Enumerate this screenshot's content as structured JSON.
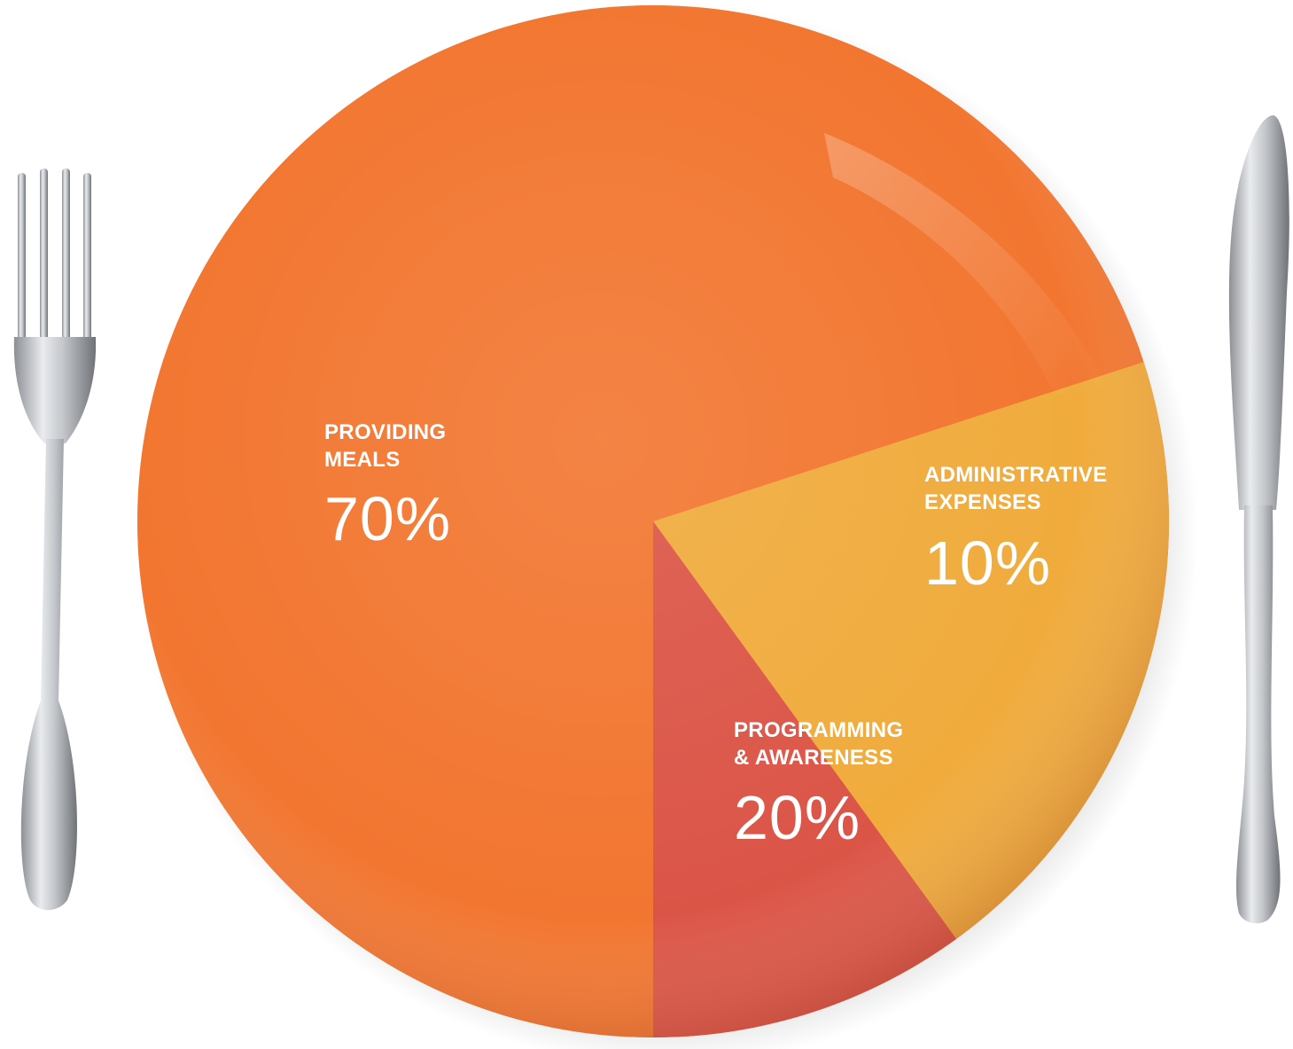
{
  "chart_data": {
    "type": "pie",
    "title": "",
    "start_angle_deg": 90,
    "direction": "counterclockwise",
    "slices": [
      {
        "label": "PROVIDING\nMEALS",
        "value": 70,
        "display": "70%",
        "color": "#f47a35"
      },
      {
        "label": "PROGRAMMING\n& AWARENESS",
        "value": 20,
        "display": "20%",
        "color": "#f0b03e"
      },
      {
        "label": "ADMINISTRATIVE\nEXPENSES",
        "value": 10,
        "display": "10%",
        "color": "#d9524a"
      }
    ]
  },
  "decor": {
    "left": "fork-icon",
    "right": "knife-icon",
    "background": "plate"
  }
}
